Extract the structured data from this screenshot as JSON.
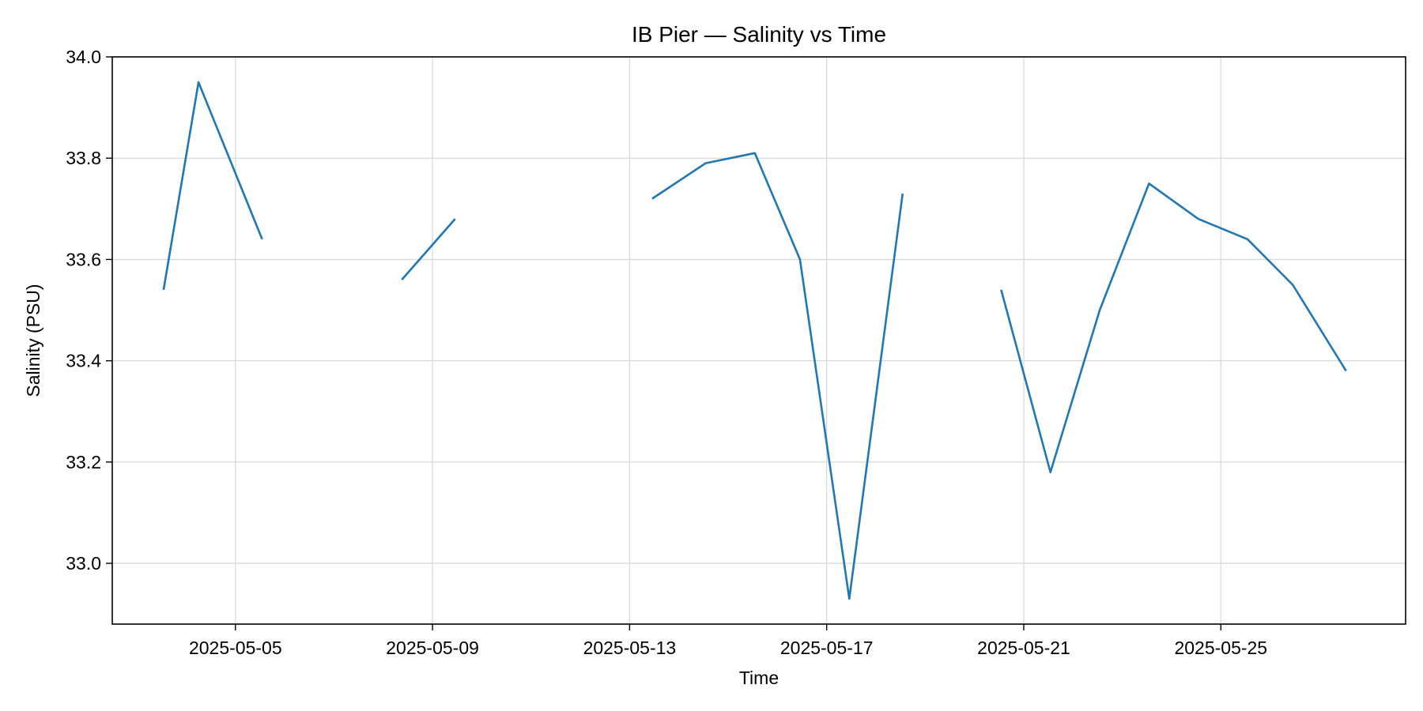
{
  "chart_data": {
    "type": "line",
    "title": "IB Pier — Salinity vs Time",
    "xlabel": "Time",
    "ylabel": "Salinity (PSU)",
    "x_ticks": [
      "2025-05-05",
      "2025-05-09",
      "2025-05-13",
      "2025-05-17",
      "2025-05-21",
      "2025-05-25"
    ],
    "y_ticks": [
      "33.0",
      "33.2",
      "33.4",
      "33.6",
      "33.8",
      "34.0"
    ],
    "xlim": [
      "2025-05-02T12:00",
      "2025-05-28T18:00"
    ],
    "ylim": [
      32.88,
      34.0
    ],
    "grid": true,
    "line_color": "#1f77b4",
    "series": [
      {
        "segments": [
          [
            {
              "x": "2025-05-03T13:00",
              "y": 33.54
            },
            {
              "x": "2025-05-04T06:00",
              "y": 33.95
            },
            {
              "x": "2025-05-05T13:00",
              "y": 33.64
            }
          ],
          [
            {
              "x": "2025-05-08T09:00",
              "y": 33.56
            },
            {
              "x": "2025-05-09T11:00",
              "y": 33.68
            }
          ],
          [
            {
              "x": "2025-05-13T11:00",
              "y": 33.72
            },
            {
              "x": "2025-05-14T13:00",
              "y": 33.79
            },
            {
              "x": "2025-05-15T13:00",
              "y": 33.81
            },
            {
              "x": "2025-05-16T11:00",
              "y": 33.6
            },
            {
              "x": "2025-05-17T11:00",
              "y": 32.93
            },
            {
              "x": "2025-05-18T13:00",
              "y": 33.73
            }
          ],
          [
            {
              "x": "2025-05-20T13:00",
              "y": 33.54
            },
            {
              "x": "2025-05-21T13:00",
              "y": 33.18
            },
            {
              "x": "2025-05-22T13:00",
              "y": 33.5
            },
            {
              "x": "2025-05-23T13:00",
              "y": 33.75
            },
            {
              "x": "2025-05-24T13:00",
              "y": 33.68
            },
            {
              "x": "2025-05-25T13:00",
              "y": 33.64
            },
            {
              "x": "2025-05-26T11:00",
              "y": 33.55
            },
            {
              "x": "2025-05-27T13:00",
              "y": 33.38
            }
          ]
        ]
      }
    ]
  }
}
